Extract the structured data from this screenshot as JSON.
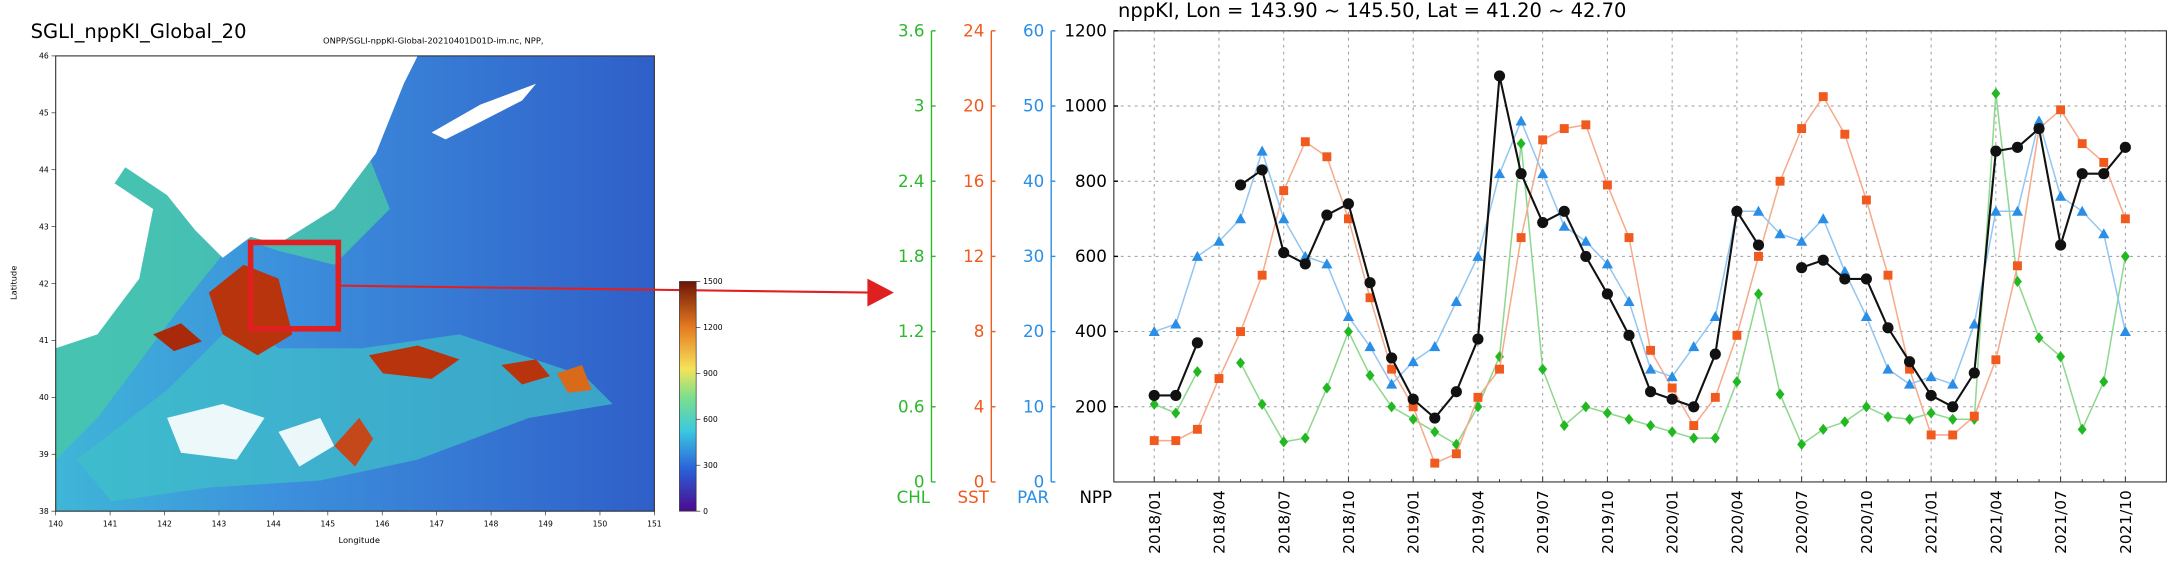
{
  "map": {
    "title": "SGLI_nppKI_Global_20",
    "file": "ONPP/SGLI-nppKI-Global-20210401D01D-im.nc, NPP,",
    "x_label": "Longitude",
    "y_label": "Latitude",
    "xlim": [
      140,
      151
    ],
    "xticks": [
      140,
      141,
      142,
      143,
      144,
      145,
      146,
      147,
      148,
      149,
      150,
      151
    ],
    "ylim": [
      38,
      46
    ],
    "yticks": [
      38,
      39,
      40,
      41,
      42,
      43,
      44,
      45,
      46
    ],
    "colorbar_lim": [
      0,
      1500
    ],
    "colorbar_ticks": [
      0,
      300,
      600,
      900,
      1200,
      1500
    ]
  },
  "chart_data": {
    "type": "line",
    "title": "nppKI, Lon = 143.90 ~ 145.50, Lat = 41.20 ~ 42.70",
    "grid": true,
    "categories": [
      "2018/01",
      null,
      null,
      "2018/04",
      null,
      null,
      "2018/07",
      null,
      null,
      "2018/10",
      null,
      null,
      "2019/01",
      null,
      null,
      "2019/04",
      null,
      null,
      "2019/07",
      null,
      null,
      "2019/10",
      null,
      null,
      "2020/01",
      null,
      null,
      "2020/04",
      null,
      null,
      "2020/07",
      null,
      null,
      "2020/10",
      null,
      null,
      "2021/01",
      null,
      null,
      "2021/04",
      null,
      null,
      "2021/07",
      null,
      null,
      "2021/10"
    ],
    "axes": [
      {
        "name": "CHL",
        "color": "#2db82d",
        "lim": [
          0,
          3.6
        ],
        "ticks": [
          0,
          0.6,
          1.2,
          1.8,
          2.4,
          3,
          3.6
        ]
      },
      {
        "name": "SST",
        "color": "#f05a1e",
        "lim": [
          0,
          24
        ],
        "ticks": [
          0,
          4,
          8,
          12,
          16,
          20,
          24
        ]
      },
      {
        "name": "PAR",
        "color": "#2a8ee6",
        "lim": [
          0,
          60
        ],
        "ticks": [
          0,
          10,
          20,
          30,
          40,
          50,
          60
        ]
      },
      {
        "name": "NPP",
        "color": "#000000",
        "lim": [
          0,
          1200
        ],
        "ticks": [
          200,
          400,
          600,
          800,
          1000,
          1200
        ]
      }
    ],
    "series": [
      {
        "name": "CHL",
        "axis": "CHL",
        "marker": "diamond",
        "color": "#22b822",
        "line_color": "#8fd88f",
        "values": [
          0.62,
          0.55,
          0.88,
          null,
          0.95,
          0.62,
          0.32,
          0.35,
          0.75,
          1.2,
          0.85,
          0.6,
          0.5,
          0.4,
          0.3,
          0.6,
          1.0,
          2.7,
          0.9,
          0.45,
          0.6,
          0.55,
          0.5,
          0.45,
          0.4,
          0.35,
          0.35,
          0.8,
          1.5,
          0.7,
          0.3,
          0.42,
          0.48,
          0.6,
          0.52,
          0.5,
          0.55,
          0.5,
          0.5,
          3.1,
          1.6,
          1.15,
          1.0,
          0.42,
          0.8,
          1.8
        ]
      },
      {
        "name": "SST",
        "axis": "SST",
        "marker": "square",
        "color": "#f05a1e",
        "line_color": "#f5ab8c",
        "values": [
          2.2,
          2.2,
          2.8,
          5.5,
          8.0,
          11.0,
          15.5,
          18.1,
          17.3,
          14.0,
          9.8,
          6.0,
          4.0,
          1.0,
          1.5,
          4.5,
          6.0,
          13.0,
          18.2,
          18.8,
          19.0,
          15.8,
          13.0,
          7.0,
          5.0,
          3.0,
          4.5,
          7.8,
          12.0,
          16.0,
          18.8,
          20.5,
          18.5,
          15.0,
          11.0,
          6.0,
          2.5,
          2.5,
          3.5,
          6.5,
          11.5,
          18.8,
          19.8,
          18.0,
          17.0,
          14.0
        ]
      },
      {
        "name": "PAR",
        "axis": "PAR",
        "marker": "triangle",
        "color": "#2a8ee6",
        "line_color": "#93c6f2",
        "values": [
          20,
          21,
          30,
          32,
          35,
          44,
          35,
          30,
          29,
          22,
          18,
          13,
          16,
          18,
          24,
          30,
          41,
          48,
          41,
          34,
          32,
          29,
          24,
          15,
          14,
          18,
          22,
          36,
          36,
          33,
          32,
          35,
          28,
          22,
          15,
          13,
          14,
          13,
          21,
          36,
          36,
          48,
          38,
          36,
          33,
          20
        ]
      },
      {
        "name": "NPP",
        "axis": "NPP",
        "marker": "circle",
        "color": "#111111",
        "line_color": "#111111",
        "values": [
          230,
          230,
          370,
          null,
          790,
          830,
          610,
          580,
          710,
          740,
          530,
          330,
          220,
          170,
          240,
          380,
          1080,
          820,
          690,
          720,
          600,
          500,
          390,
          240,
          220,
          200,
          340,
          720,
          630,
          null,
          570,
          590,
          540,
          540,
          410,
          320,
          230,
          200,
          290,
          880,
          890,
          940,
          630,
          820,
          820,
          890
        ]
      }
    ]
  }
}
